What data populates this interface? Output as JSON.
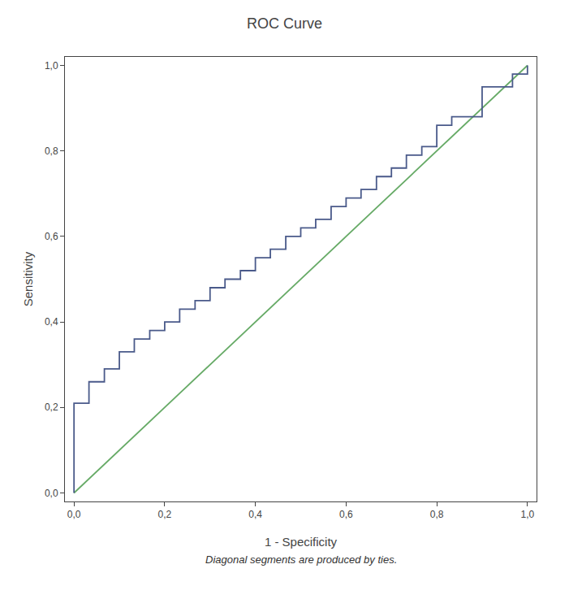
{
  "chart_data": {
    "type": "line",
    "title": "ROC Curve",
    "x_label": "1 - Specificity",
    "y_label": "Sensitivity",
    "annotations": [
      "Diagonal segments are produced by ties."
    ],
    "xlim": [
      -0.02,
      1.02
    ],
    "ylim": [
      -0.02,
      1.02
    ],
    "xticks": [
      {
        "value": 0.0,
        "label": "0,0"
      },
      {
        "value": 0.2,
        "label": "0,2"
      },
      {
        "value": 0.4,
        "label": "0,4"
      },
      {
        "value": 0.6,
        "label": "0,6"
      },
      {
        "value": 0.8,
        "label": "0,8"
      },
      {
        "value": 1.0,
        "label": "1,0"
      }
    ],
    "yticks": [
      {
        "value": 0.0,
        "label": "0,0"
      },
      {
        "value": 0.2,
        "label": "0,2"
      },
      {
        "value": 0.4,
        "label": "0,4"
      },
      {
        "value": 0.6,
        "label": "0,6"
      },
      {
        "value": 0.8,
        "label": "0,8"
      },
      {
        "value": 1.0,
        "label": "1,0"
      }
    ],
    "grid": false,
    "series": [
      {
        "color": "#66aa66",
        "x": [
          0,
          1
        ],
        "values": [
          0,
          1
        ]
      },
      {
        "color": "#4a5a8a",
        "x": [
          0.0,
          0.0,
          0.0,
          0.033,
          0.033,
          0.033,
          0.067,
          0.067,
          0.1,
          0.1,
          0.1,
          0.133,
          0.133,
          0.167,
          0.167,
          0.2,
          0.2,
          0.233,
          0.233,
          0.267,
          0.267,
          0.3,
          0.3,
          0.333,
          0.333,
          0.367,
          0.367,
          0.4,
          0.4,
          0.433,
          0.433,
          0.467,
          0.467,
          0.5,
          0.5,
          0.533,
          0.533,
          0.567,
          0.567,
          0.6,
          0.6,
          0.633,
          0.633,
          0.667,
          0.667,
          0.7,
          0.7,
          0.733,
          0.733,
          0.767,
          0.767,
          0.8,
          0.8,
          0.833,
          0.833,
          0.9,
          0.9,
          0.967,
          0.967,
          1.0,
          1.0
        ],
        "values": [
          0.0,
          0.19,
          0.21,
          0.21,
          0.24,
          0.26,
          0.26,
          0.29,
          0.29,
          0.31,
          0.33,
          0.33,
          0.36,
          0.36,
          0.38,
          0.38,
          0.4,
          0.4,
          0.43,
          0.43,
          0.45,
          0.45,
          0.48,
          0.48,
          0.5,
          0.5,
          0.52,
          0.52,
          0.55,
          0.55,
          0.57,
          0.57,
          0.6,
          0.6,
          0.62,
          0.62,
          0.64,
          0.64,
          0.67,
          0.67,
          0.69,
          0.69,
          0.71,
          0.71,
          0.74,
          0.74,
          0.76,
          0.76,
          0.79,
          0.79,
          0.81,
          0.81,
          0.86,
          0.86,
          0.88,
          0.88,
          0.95,
          0.95,
          0.98,
          0.98,
          1.0
        ]
      }
    ]
  }
}
